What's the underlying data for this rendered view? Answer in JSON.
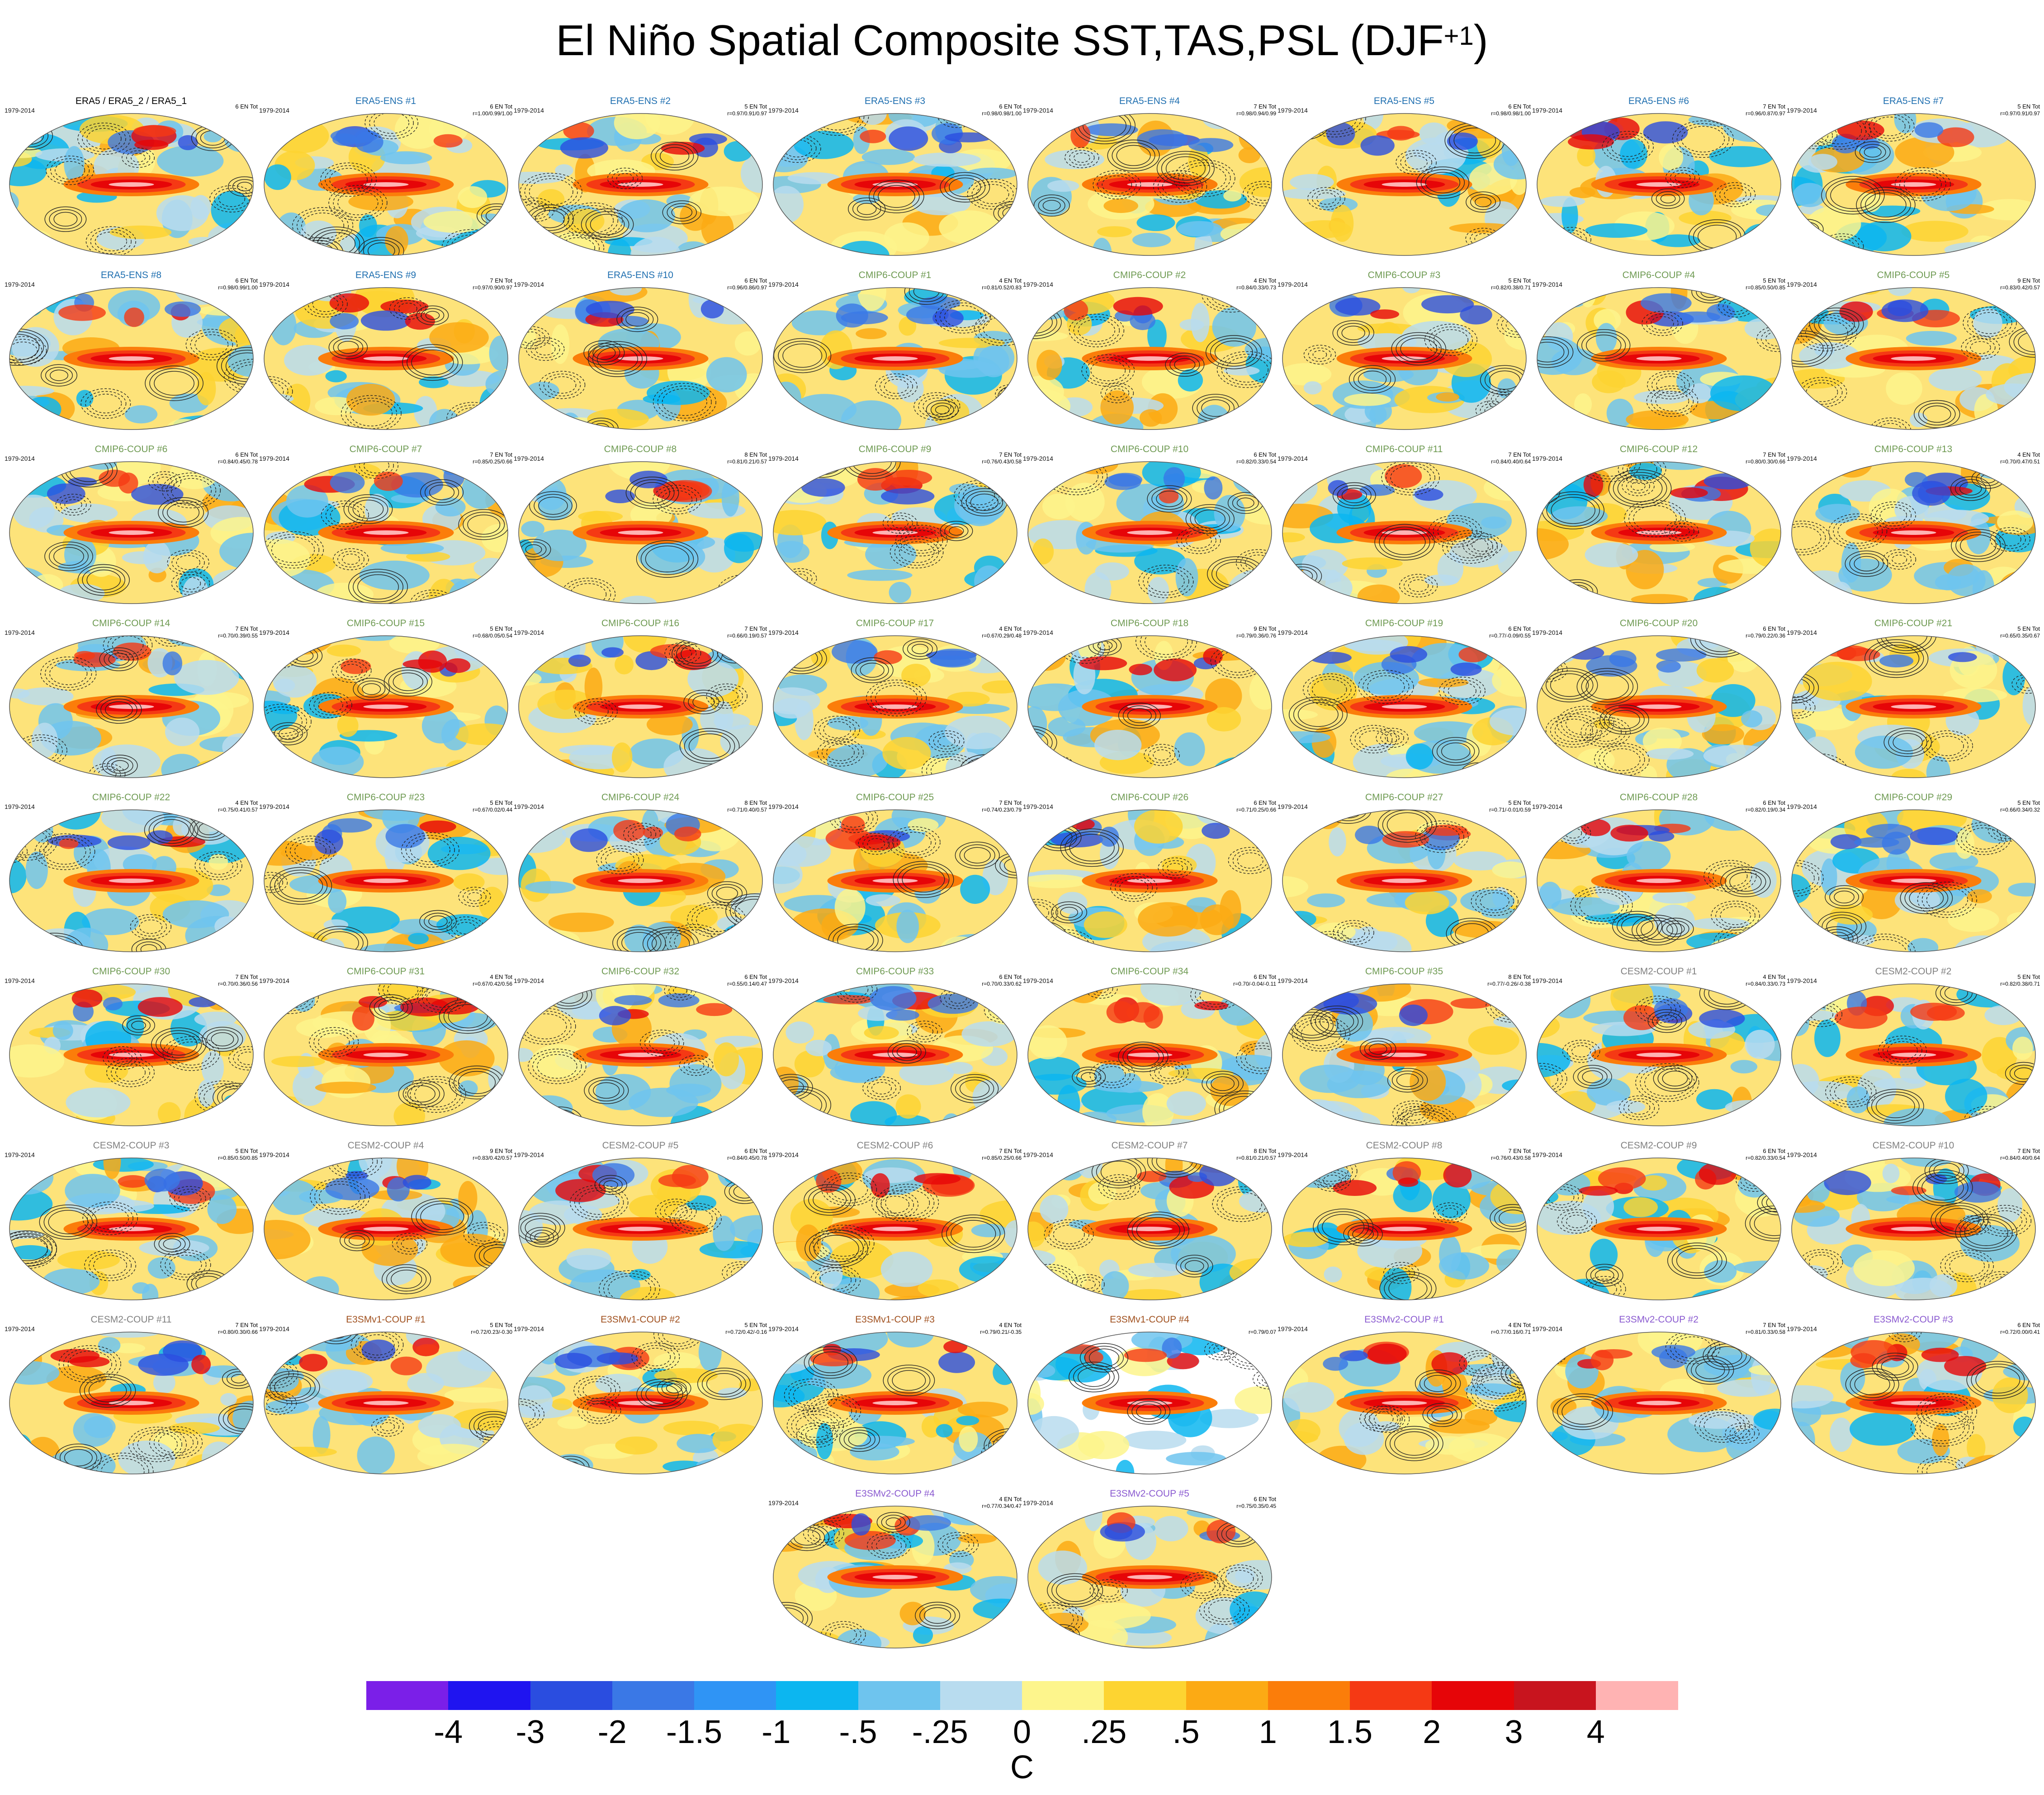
{
  "chart_data": {
    "type": "heatmap",
    "title": "El Niño Spatial Composite SST,TAS,PSL (DJF",
    "title_superscript": "+1",
    "title_suffix": ")",
    "units": "C",
    "colorbar": {
      "colors": [
        "#7b1fe8",
        "#1f14f0",
        "#2a4de0",
        "#3a78e6",
        "#2f94f5",
        "#0cb6f0",
        "#6ec4ee",
        "#b8dcef",
        "#fdf58c",
        "#fdd431",
        "#fcaa14",
        "#fb7d0a",
        "#f53914",
        "#e60508",
        "#c8141e",
        "#ffb3b3"
      ],
      "labels": [
        "-4",
        "-3",
        "-2",
        "-1.5",
        "-1",
        "-.5",
        "-.25",
        "0",
        ".25",
        ".5",
        "1",
        "1.5",
        "2",
        "3",
        "4"
      ]
    },
    "panels": [
      {
        "title": "ERA5 / ERA5_2 / ERA5_1",
        "period": "1979-2014",
        "events": "6 EN Tot",
        "stats": "",
        "group": "obs"
      },
      {
        "title": "ERA5-ENS   #1",
        "period": "1979-2014",
        "events": "6 EN Tot",
        "stats": "r=1.00/0.99/1.00",
        "group": "era"
      },
      {
        "title": "ERA5-ENS   #2",
        "period": "1979-2014",
        "events": "5 EN Tot",
        "stats": "r=0.97/0.91/0.97",
        "group": "era"
      },
      {
        "title": "ERA5-ENS   #3",
        "period": "1979-2014",
        "events": "6 EN Tot",
        "stats": "r=0.98/0.98/1.00",
        "group": "era"
      },
      {
        "title": "ERA5-ENS   #4",
        "period": "1979-2014",
        "events": "7 EN Tot",
        "stats": "r=0.98/0.94/0.99",
        "group": "era"
      },
      {
        "title": "ERA5-ENS   #5",
        "period": "1979-2014",
        "events": "6 EN Tot",
        "stats": "r=0.98/0.98/1.00",
        "group": "era"
      },
      {
        "title": "ERA5-ENS   #6",
        "period": "1979-2014",
        "events": "7 EN Tot",
        "stats": "r=0.96/0.87/0.97",
        "group": "era"
      },
      {
        "title": "ERA5-ENS   #7",
        "period": "1979-2014",
        "events": "5 EN Tot",
        "stats": "r=0.97/0.91/0.97",
        "group": "era"
      },
      {
        "title": "ERA5-ENS   #8",
        "period": "1979-2014",
        "events": "6 EN Tot",
        "stats": "r=0.98/0.99/1.00",
        "group": "era"
      },
      {
        "title": "ERA5-ENS   #9",
        "period": "1979-2014",
        "events": "7 EN Tot",
        "stats": "r=0.97/0.90/0.97",
        "group": "era"
      },
      {
        "title": "ERA5-ENS   #10",
        "period": "1979-2014",
        "events": "6 EN Tot",
        "stats": "r=0.96/0.86/0.97",
        "group": "era"
      },
      {
        "title": "CMIP6-COUP  #1",
        "period": "1979-2014",
        "events": "4 EN Tot",
        "stats": "r=0.81/0.52/0.83",
        "group": "cmip"
      },
      {
        "title": "CMIP6-COUP  #2",
        "period": "1979-2014",
        "events": "4 EN Tot",
        "stats": "r=0.84/0.33/0.73",
        "group": "cmip"
      },
      {
        "title": "CMIP6-COUP  #3",
        "period": "1979-2014",
        "events": "5 EN Tot",
        "stats": "r=0.82/0.38/0.71",
        "group": "cmip"
      },
      {
        "title": "CMIP6-COUP  #4",
        "period": "1979-2014",
        "events": "5 EN Tot",
        "stats": "r=0.85/0.50/0.85",
        "group": "cmip"
      },
      {
        "title": "CMIP6-COUP  #5",
        "period": "1979-2014",
        "events": "9 EN Tot",
        "stats": "r=0.83/0.42/0.57",
        "group": "cmip"
      },
      {
        "title": "CMIP6-COUP  #6",
        "period": "1979-2014",
        "events": "6 EN Tot",
        "stats": "r=0.84/0.45/0.78",
        "group": "cmip"
      },
      {
        "title": "CMIP6-COUP  #7",
        "period": "1979-2014",
        "events": "7 EN Tot",
        "stats": "r=0.85/0.25/0.66",
        "group": "cmip"
      },
      {
        "title": "CMIP6-COUP  #8",
        "period": "1979-2014",
        "events": "8 EN Tot",
        "stats": "r=0.81/0.21/0.57",
        "group": "cmip"
      },
      {
        "title": "CMIP6-COUP  #9",
        "period": "1979-2014",
        "events": "7 EN Tot",
        "stats": "r=0.76/0.43/0.58",
        "group": "cmip"
      },
      {
        "title": "CMIP6-COUP  #10",
        "period": "1979-2014",
        "events": "6 EN Tot",
        "stats": "r=0.82/0.33/0.54",
        "group": "cmip"
      },
      {
        "title": "CMIP6-COUP  #11",
        "period": "1979-2014",
        "events": "7 EN Tot",
        "stats": "r=0.84/0.40/0.64",
        "group": "cmip"
      },
      {
        "title": "CMIP6-COUP  #12",
        "period": "1979-2014",
        "events": "7 EN Tot",
        "stats": "r=0.80/0.30/0.66",
        "group": "cmip"
      },
      {
        "title": "CMIP6-COUP  #13",
        "period": "1979-2014",
        "events": "4 EN Tot",
        "stats": "r=0.70/0.47/0.51",
        "group": "cmip"
      },
      {
        "title": "CMIP6-COUP  #14",
        "period": "1979-2014",
        "events": "7 EN Tot",
        "stats": "r=0.70/0.39/0.55",
        "group": "cmip"
      },
      {
        "title": "CMIP6-COUP  #15",
        "period": "1979-2014",
        "events": "5 EN Tot",
        "stats": "r=0.68/0.05/0.54",
        "group": "cmip"
      },
      {
        "title": "CMIP6-COUP  #16",
        "period": "1979-2014",
        "events": "7 EN Tot",
        "stats": "r=0.66/0.19/0.57",
        "group": "cmip"
      },
      {
        "title": "CMIP6-COUP  #17",
        "period": "1979-2014",
        "events": "4 EN Tot",
        "stats": "r=0.67/0.29/0.48",
        "group": "cmip"
      },
      {
        "title": "CMIP6-COUP  #18",
        "period": "1979-2014",
        "events": "9 EN Tot",
        "stats": "r=0.79/0.36/0.76",
        "group": "cmip"
      },
      {
        "title": "CMIP6-COUP  #19",
        "period": "1979-2014",
        "events": "6 EN Tot",
        "stats": "r=0.77/-0.09/0.55",
        "group": "cmip"
      },
      {
        "title": "CMIP6-COUP  #20",
        "period": "1979-2014",
        "events": "6 EN Tot",
        "stats": "r=0.79/0.22/0.36",
        "group": "cmip"
      },
      {
        "title": "CMIP6-COUP  #21",
        "period": "1979-2014",
        "events": "5 EN Tot",
        "stats": "r=0.65/0.35/0.67",
        "group": "cmip"
      },
      {
        "title": "CMIP6-COUP  #22",
        "period": "1979-2014",
        "events": "4 EN Tot",
        "stats": "r=0.75/0.41/0.57",
        "group": "cmip"
      },
      {
        "title": "CMIP6-COUP  #23",
        "period": "1979-2014",
        "events": "5 EN Tot",
        "stats": "r=0.67/0.02/0.44",
        "group": "cmip"
      },
      {
        "title": "CMIP6-COUP  #24",
        "period": "1979-2014",
        "events": "8 EN Tot",
        "stats": "r=0.71/0.40/0.57",
        "group": "cmip"
      },
      {
        "title": "CMIP6-COUP  #25",
        "period": "1979-2014",
        "events": "7 EN Tot",
        "stats": "r=0.74/0.23/0.79",
        "group": "cmip"
      },
      {
        "title": "CMIP6-COUP  #26",
        "period": "1979-2014",
        "events": "6 EN Tot",
        "stats": "r=0.71/0.25/0.66",
        "group": "cmip"
      },
      {
        "title": "CMIP6-COUP  #27",
        "period": "1979-2014",
        "events": "5 EN Tot",
        "stats": "r=0.71/-0.01/0.59",
        "group": "cmip"
      },
      {
        "title": "CMIP6-COUP  #28",
        "period": "1979-2014",
        "events": "6 EN Tot",
        "stats": "r=0.82/0.19/0.34",
        "group": "cmip"
      },
      {
        "title": "CMIP6-COUP  #29",
        "period": "1979-2014",
        "events": "5 EN Tot",
        "stats": "r=0.66/0.34/0.32",
        "group": "cmip"
      },
      {
        "title": "CMIP6-COUP  #30",
        "period": "1979-2014",
        "events": "7 EN Tot",
        "stats": "r=0.70/0.36/0.56",
        "group": "cmip"
      },
      {
        "title": "CMIP6-COUP  #31",
        "period": "1979-2014",
        "events": "4 EN Tot",
        "stats": "r=0.67/0.42/0.56",
        "group": "cmip"
      },
      {
        "title": "CMIP6-COUP  #32",
        "period": "1979-2014",
        "events": "6 EN Tot",
        "stats": "r=0.55/0.14/0.47",
        "group": "cmip"
      },
      {
        "title": "CMIP6-COUP  #33",
        "period": "1979-2014",
        "events": "6 EN Tot",
        "stats": "r=0.70/0.33/0.62",
        "group": "cmip"
      },
      {
        "title": "CMIP6-COUP  #34",
        "period": "1979-2014",
        "events": "6 EN Tot",
        "stats": "r=0.70/-0.04/-0.11",
        "group": "cmip"
      },
      {
        "title": "CMIP6-COUP  #35",
        "period": "1979-2014",
        "events": "8 EN Tot",
        "stats": "r=0.77/-0.26/-0.38",
        "group": "cmip"
      },
      {
        "title": "CESM2-COUP  #1",
        "period": "1979-2014",
        "events": "4 EN Tot",
        "stats": "r=0.84/0.33/0.73",
        "group": "cesm"
      },
      {
        "title": "CESM2-COUP  #2",
        "period": "1979-2014",
        "events": "5 EN Tot",
        "stats": "r=0.82/0.38/0.71",
        "group": "cesm"
      },
      {
        "title": "CESM2-COUP  #3",
        "period": "1979-2014",
        "events": "5 EN Tot",
        "stats": "r=0.85/0.50/0.85",
        "group": "cesm"
      },
      {
        "title": "CESM2-COUP  #4",
        "period": "1979-2014",
        "events": "9 EN Tot",
        "stats": "r=0.83/0.42/0.57",
        "group": "cesm"
      },
      {
        "title": "CESM2-COUP  #5",
        "period": "1979-2014",
        "events": "6 EN Tot",
        "stats": "r=0.84/0.45/0.78",
        "group": "cesm"
      },
      {
        "title": "CESM2-COUP  #6",
        "period": "1979-2014",
        "events": "7 EN Tot",
        "stats": "r=0.85/0.25/0.66",
        "group": "cesm"
      },
      {
        "title": "CESM2-COUP  #7",
        "period": "1979-2014",
        "events": "8 EN Tot",
        "stats": "r=0.81/0.21/0.57",
        "group": "cesm"
      },
      {
        "title": "CESM2-COUP  #8",
        "period": "1979-2014",
        "events": "7 EN Tot",
        "stats": "r=0.76/0.43/0.58",
        "group": "cesm"
      },
      {
        "title": "CESM2-COUP  #9",
        "period": "1979-2014",
        "events": "6 EN Tot",
        "stats": "r=0.82/0.33/0.54",
        "group": "cesm"
      },
      {
        "title": "CESM2-COUP  #10",
        "period": "1979-2014",
        "events": "7 EN Tot",
        "stats": "r=0.84/0.40/0.64",
        "group": "cesm"
      },
      {
        "title": "CESM2-COUP  #11",
        "period": "1979-2014",
        "events": "7 EN Tot",
        "stats": "r=0.80/0.30/0.66",
        "group": "cesm"
      },
      {
        "title": "E3SMv1-COUP #1",
        "period": "1979-2014",
        "events": "5 EN Tot",
        "stats": "r=0.72/0.23/-0.30",
        "group": "e3v1"
      },
      {
        "title": "E3SMv1-COUP #2",
        "period": "1979-2014",
        "events": "5 EN Tot",
        "stats": "r=0.72/0.42/-0.16",
        "group": "e3v1"
      },
      {
        "title": "E3SMv1-COUP #3",
        "period": "1979-2014",
        "events": "4 EN Tot",
        "stats": "r=0.79/0.21/-0.35",
        "group": "e3v1"
      },
      {
        "title": "E3SMv1-COUP #4",
        "period": "",
        "events": "",
        "stats": "r=0.79/0.07",
        "group": "e3v1"
      },
      {
        "title": "E3SMv2-COUP #1",
        "period": "1979-2014",
        "events": "4 EN Tot",
        "stats": "r=0.77/0.16/0.71",
        "group": "e3v2"
      },
      {
        "title": "E3SMv2-COUP #2",
        "period": "1979-2014",
        "events": "7 EN Tot",
        "stats": "r=0.81/0.33/0.58",
        "group": "e3v2"
      },
      {
        "title": "E3SMv2-COUP #3",
        "period": "1979-2014",
        "events": "6 EN Tot",
        "stats": "r=0.72/0.00/0.41",
        "group": "e3v2"
      },
      {
        "title": "E3SMv2-COUP #4",
        "period": "1979-2014",
        "events": "4 EN Tot",
        "stats": "r=0.77/0.34/0.47",
        "group": "e3v2"
      },
      {
        "title": "E3SMv2-COUP #5",
        "period": "1979-2014",
        "events": "6 EN Tot",
        "stats": "r=0.75/0.35/0.45",
        "group": "e3v2"
      }
    ],
    "group_colors": {
      "obs": "#000000",
      "era": "#1f6fb0",
      "cmip": "#6e9a52",
      "cesm": "#808080",
      "e3v1": "#a0501e",
      "e3v2": "#8a5ad0"
    }
  }
}
